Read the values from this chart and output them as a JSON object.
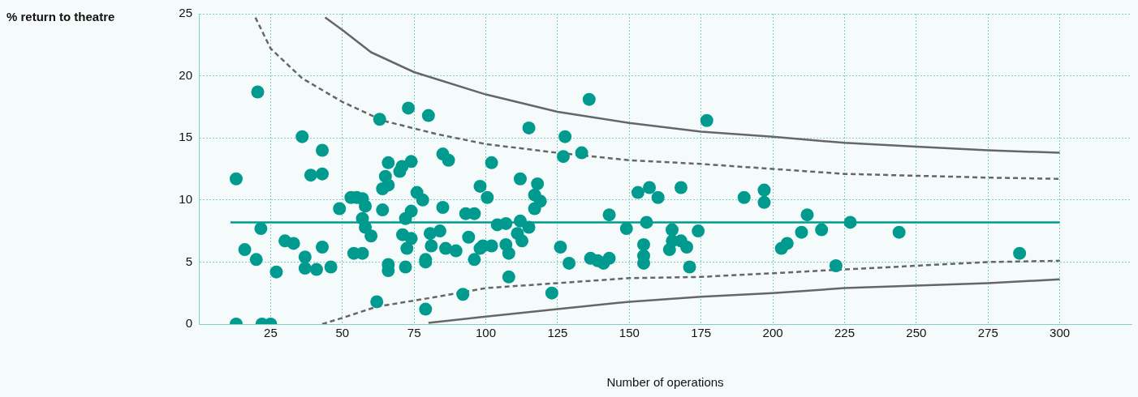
{
  "chart_data": {
    "type": "scatter",
    "annotations": [
      "% return to theatre"
    ],
    "xlabel": "Number of operations",
    "xlim": [
      0,
      325
    ],
    "xticks": [
      25,
      50,
      75,
      100,
      125,
      150,
      175,
      200,
      225,
      250,
      275,
      300
    ],
    "ylim": [
      0,
      25
    ],
    "yticks": [
      0,
      5,
      10,
      15,
      20,
      25
    ],
    "grid": true,
    "legend": false,
    "series": [
      {
        "marker": "circle",
        "color": "#009b8e",
        "x": [
          13,
          13,
          16,
          20,
          20.5,
          21.6,
          22,
          25,
          27,
          30,
          33,
          36,
          37,
          37,
          39,
          41,
          43,
          43,
          43,
          46,
          49,
          53,
          55,
          54,
          57,
          57,
          58,
          57,
          58,
          60,
          62,
          63,
          64,
          64,
          65,
          66,
          66,
          66,
          66,
          70,
          70.8,
          71,
          72,
          72,
          73,
          72.5,
          74,
          74,
          74,
          76,
          78,
          79,
          79,
          79,
          80,
          80.6,
          81,
          84,
          85,
          85,
          86,
          87,
          89.6,
          92,
          93,
          94,
          96,
          96,
          98,
          98,
          99,
          100.5,
          102,
          102,
          104,
          107,
          107,
          108,
          108,
          111,
          112,
          112,
          112.6,
          115,
          115,
          117,
          117,
          118,
          119,
          123,
          126,
          127,
          127.6,
          129,
          133.4,
          136,
          136.5,
          139,
          141,
          143,
          143,
          149,
          153,
          156,
          155,
          155,
          155,
          157,
          160,
          164,
          164.9,
          165,
          168,
          168,
          170,
          171,
          174,
          177,
          190,
          197,
          197,
          203,
          205,
          210,
          212,
          217,
          222,
          227,
          244,
          286
        ],
        "values": [
          0,
          11.7,
          6.0,
          5.2,
          18.7,
          7.7,
          0,
          0,
          4.2,
          6.7,
          6.5,
          15.1,
          5.4,
          4.5,
          12.0,
          4.4,
          6.2,
          14.0,
          12.1,
          4.6,
          9.3,
          10.2,
          10.2,
          5.7,
          10.1,
          5.7,
          9.5,
          8.5,
          7.8,
          7.1,
          1.8,
          16.5,
          9.2,
          10.9,
          11.9,
          13.0,
          11.2,
          4.8,
          4.3,
          12.3,
          12.7,
          7.2,
          8.5,
          4.6,
          17.4,
          6.1,
          9.1,
          6.9,
          13.1,
          10.6,
          10.0,
          5.0,
          5.2,
          1.2,
          16.8,
          7.3,
          6.3,
          7.5,
          13.7,
          9.4,
          6.1,
          13.2,
          5.9,
          2.4,
          8.9,
          7.0,
          8.9,
          5.2,
          6.1,
          11.1,
          6.3,
          10.2,
          13.0,
          6.3,
          8.0,
          6.4,
          8.1,
          5.7,
          3.8,
          7.3,
          11.7,
          8.3,
          6.7,
          15.8,
          7.8,
          9.3,
          10.4,
          11.3,
          9.9,
          2.5,
          6.2,
          13.5,
          15.1,
          4.9,
          13.8,
          18.1,
          5.3,
          5.1,
          4.9,
          5.3,
          8.8,
          7.7,
          10.6,
          8.2,
          6.4,
          5.5,
          4.9,
          11.0,
          10.2,
          6.0,
          7.6,
          6.7,
          6.7,
          11.0,
          6.2,
          4.6,
          7.5,
          16.4,
          10.2,
          10.8,
          9.8,
          6.1,
          6.5,
          7.4,
          8.8,
          7.6,
          4.7,
          8.2,
          7.4,
          5.7
        ]
      },
      {
        "type": "line",
        "marker": "none",
        "line_style": "solid",
        "color": "#009b8e",
        "x": [
          11,
          300
        ],
        "values": [
          8.2,
          8.2
        ]
      },
      {
        "type": "line",
        "marker": "none",
        "line_style": "solid",
        "color": "#666666",
        "x": [
          44,
          50,
          60,
          75,
          100,
          125,
          150,
          175,
          200,
          225,
          250,
          275,
          300
        ],
        "values": [
          24.7,
          23.7,
          21.9,
          20.3,
          18.5,
          17.1,
          16.2,
          15.5,
          15.1,
          14.6,
          14.3,
          14.0,
          13.8
        ]
      },
      {
        "type": "line",
        "marker": "none",
        "line_style": "dashed",
        "color": "#666666",
        "x": [
          19.7,
          25,
          36,
          50,
          64,
          83,
          100,
          125,
          150,
          175,
          200,
          225,
          275,
          300
        ],
        "values": [
          24.7,
          22.2,
          19.8,
          17.9,
          16.4,
          15.3,
          14.5,
          13.8,
          13.2,
          12.9,
          12.5,
          12.1,
          11.8,
          11.7
        ]
      },
      {
        "type": "line",
        "marker": "none",
        "line_style": "dashed",
        "color": "#666666",
        "x": [
          43,
          50,
          62,
          83,
          100,
          125,
          150,
          175,
          200,
          225,
          275,
          300
        ],
        "values": [
          0,
          0.5,
          1.4,
          2.2,
          2.9,
          3.3,
          3.7,
          3.8,
          4.1,
          4.4,
          5.0,
          5.1
        ]
      },
      {
        "type": "line",
        "marker": "none",
        "line_style": "solid",
        "color": "#666666",
        "x": [
          80,
          100,
          125,
          150,
          175,
          200,
          225,
          275,
          300
        ],
        "values": [
          0.1,
          0.6,
          1.2,
          1.8,
          2.2,
          2.5,
          2.9,
          3.3,
          3.6
        ]
      }
    ]
  }
}
